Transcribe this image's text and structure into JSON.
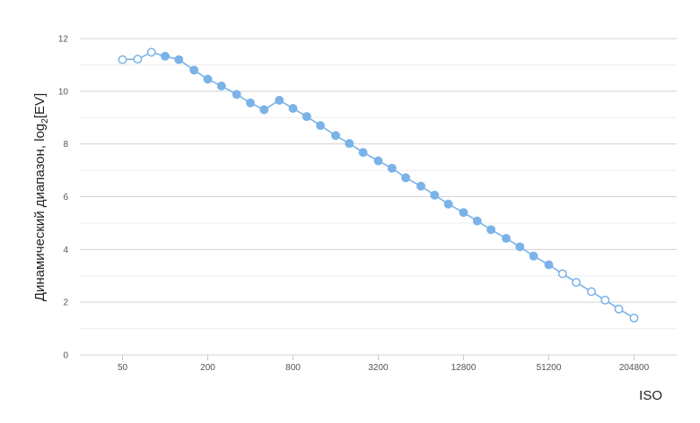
{
  "chart_data": {
    "type": "line",
    "xlabel": "ISO",
    "ylabel": "Динамический диапазон, log",
    "ylabel_subscript": "2",
    "ylabel_suffix": "[EV]",
    "x_scale": "log2",
    "xlim": [
      25,
      409600
    ],
    "ylim": [
      0,
      12
    ],
    "x_ticks": [
      50,
      200,
      800,
      3200,
      12800,
      51200,
      204800
    ],
    "x_tick_labels": [
      "50",
      "200",
      "800",
      "3200",
      "12800",
      "51200",
      "204800"
    ],
    "y_ticks": [
      0,
      2,
      4,
      6,
      8,
      10,
      12
    ],
    "y_tick_labels": [
      "0",
      "2",
      "4",
      "6",
      "8",
      "10",
      "12"
    ],
    "grid": true,
    "color": "#7bb3e8",
    "series": [
      {
        "points": [
          {
            "x": 50,
            "y": 11.2,
            "native": false
          },
          {
            "x": 64,
            "y": 11.22,
            "native": false
          },
          {
            "x": 80,
            "y": 11.48,
            "native": false
          },
          {
            "x": 100,
            "y": 11.33,
            "native": true
          },
          {
            "x": 125,
            "y": 11.2,
            "native": true
          },
          {
            "x": 160,
            "y": 10.8,
            "native": true
          },
          {
            "x": 200,
            "y": 10.46,
            "native": true
          },
          {
            "x": 250,
            "y": 10.2,
            "native": true
          },
          {
            "x": 320,
            "y": 9.88,
            "native": true
          },
          {
            "x": 400,
            "y": 9.56,
            "native": true
          },
          {
            "x": 500,
            "y": 9.3,
            "native": true
          },
          {
            "x": 640,
            "y": 9.66,
            "native": true
          },
          {
            "x": 800,
            "y": 9.35,
            "native": true
          },
          {
            "x": 1000,
            "y": 9.04,
            "native": true
          },
          {
            "x": 1250,
            "y": 8.7,
            "native": true
          },
          {
            "x": 1600,
            "y": 8.32,
            "native": true
          },
          {
            "x": 2000,
            "y": 8.02,
            "native": true
          },
          {
            "x": 2500,
            "y": 7.68,
            "native": true
          },
          {
            "x": 3200,
            "y": 7.36,
            "native": true
          },
          {
            "x": 4000,
            "y": 7.08,
            "native": true
          },
          {
            "x": 5000,
            "y": 6.72,
            "native": true
          },
          {
            "x": 6400,
            "y": 6.4,
            "native": true
          },
          {
            "x": 8000,
            "y": 6.06,
            "native": true
          },
          {
            "x": 10000,
            "y": 5.72,
            "native": true
          },
          {
            "x": 12800,
            "y": 5.4,
            "native": true
          },
          {
            "x": 16000,
            "y": 5.08,
            "native": true
          },
          {
            "x": 20000,
            "y": 4.75,
            "native": true
          },
          {
            "x": 25600,
            "y": 4.42,
            "native": true
          },
          {
            "x": 32000,
            "y": 4.1,
            "native": true
          },
          {
            "x": 40000,
            "y": 3.75,
            "native": true
          },
          {
            "x": 51200,
            "y": 3.42,
            "native": true
          },
          {
            "x": 64000,
            "y": 3.08,
            "native": false
          },
          {
            "x": 80000,
            "y": 2.75,
            "native": false
          },
          {
            "x": 102400,
            "y": 2.4,
            "native": false
          },
          {
            "x": 128000,
            "y": 2.08,
            "native": false
          },
          {
            "x": 160000,
            "y": 1.74,
            "native": false
          },
          {
            "x": 204800,
            "y": 1.4,
            "native": false
          }
        ]
      }
    ]
  }
}
